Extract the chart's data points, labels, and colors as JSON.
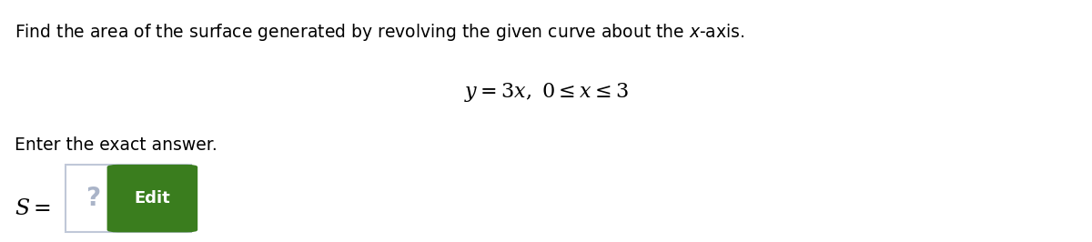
{
  "bg_color": "#ffffff",
  "title_fontsize": 13.5,
  "eq_fontsize": 16,
  "enter_text": "Enter the exact answer.",
  "enter_fontsize": 13.5,
  "s_fontsize": 17,
  "box_edge_color": "#c0c8d8",
  "box_fill_color": "#ffffff",
  "qm_color": "#aab4c8",
  "qm_fontsize": 20,
  "edit_btn_color": "#3a7d1e",
  "edit_text": "Edit",
  "edit_text_color": "#ffffff",
  "edit_fontsize": 13
}
